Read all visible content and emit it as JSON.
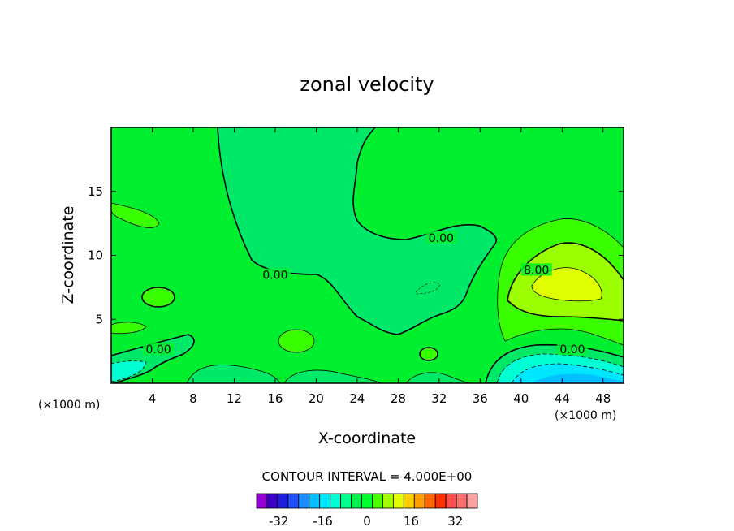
{
  "chart_data": {
    "type": "heatmap",
    "title": "zonal velocity",
    "xlabel": "X-coordinate",
    "ylabel": "Z-coordinate",
    "x_unit": "(×1000 m)",
    "y_unit": "(×1000 m)",
    "xlim": [
      0,
      50
    ],
    "ylim": [
      0,
      20
    ],
    "x_ticks": [
      4,
      8,
      12,
      16,
      20,
      24,
      28,
      32,
      36,
      40,
      44,
      48
    ],
    "y_ticks": [
      5,
      10,
      15
    ],
    "contour_interval_text": "CONTOUR INTERVAL = 4.000E+00",
    "contour_labels": [
      {
        "text": "0.00",
        "x": 16.0,
        "z": 8.4
      },
      {
        "text": "0.00",
        "x": 32.2,
        "z": 11.3
      },
      {
        "text": "0.00",
        "x": 4.6,
        "z": 2.6
      },
      {
        "text": "8.00",
        "x": 41.5,
        "z": 8.8
      },
      {
        "text": "0.00",
        "x": 45.0,
        "z": 2.6
      }
    ],
    "colorbar": {
      "min": -40,
      "max": 40,
      "step": 4,
      "tick_labels": [
        "-32",
        "-16",
        "0",
        "16",
        "32"
      ],
      "tick_values": [
        -32,
        -16,
        0,
        16,
        32
      ],
      "colors": [
        "#9400d3",
        "#3a00c8",
        "#1e1edc",
        "#1e50ff",
        "#1e8cff",
        "#00c0ff",
        "#00e6ff",
        "#00ffd2",
        "#00ff8c",
        "#00f050",
        "#00ff30",
        "#4cff00",
        "#a4ff00",
        "#e6ff00",
        "#ffd000",
        "#ffa000",
        "#ff6400",
        "#ff3000",
        "#ff5050",
        "#ff7070",
        "#ffa0a0"
      ]
    },
    "fields": {
      "background_value": 2,
      "regions": [
        {
          "value": -2,
          "note": "central dome region below 0 contour"
        },
        {
          "value": 6,
          "note": "eastern jet core band"
        },
        {
          "value": 10,
          "note": "eastern jet maximum"
        },
        {
          "value": -10,
          "note": "near-surface easterly pocket, east"
        }
      ]
    }
  }
}
